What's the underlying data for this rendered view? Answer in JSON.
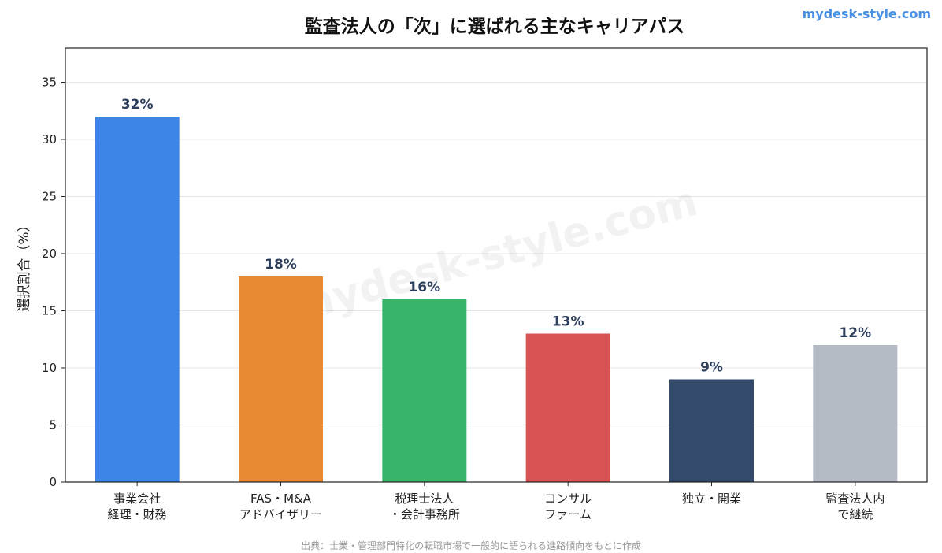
{
  "chart_data": {
    "type": "bar",
    "title": "監査法人の「次」に選ばれる主なキャリアパス",
    "ylabel": "選択割合（%）",
    "xlabel": "",
    "ylim": [
      0,
      38
    ],
    "yticks": [
      0,
      5,
      10,
      15,
      20,
      25,
      30,
      35
    ],
    "grid": true,
    "categories": [
      [
        "事業会社",
        "経理・財務"
      ],
      [
        "FAS・M&A",
        "アドバイザリー"
      ],
      [
        "税理士法人",
        "・会計事務所"
      ],
      [
        "コンサル",
        "ファーム"
      ],
      [
        "独立・開業"
      ],
      [
        "監査法人内",
        "で継続"
      ]
    ],
    "values": [
      32,
      18,
      16,
      13,
      9,
      12
    ],
    "data_labels": [
      "32%",
      "18%",
      "16%",
      "13%",
      "9%",
      "12%"
    ],
    "colors": [
      "#3d86e8",
      "#e88a33",
      "#39b46b",
      "#d95354",
      "#334a6b",
      "#b4bbc4"
    ],
    "label_color": "#2c3e5c"
  },
  "brand": "mydesk-style.com",
  "watermark": "mydesk-style.com",
  "source": "出典：士業・管理部門特化の転職市場で一般的に語られる進路傾向をもとに作成"
}
